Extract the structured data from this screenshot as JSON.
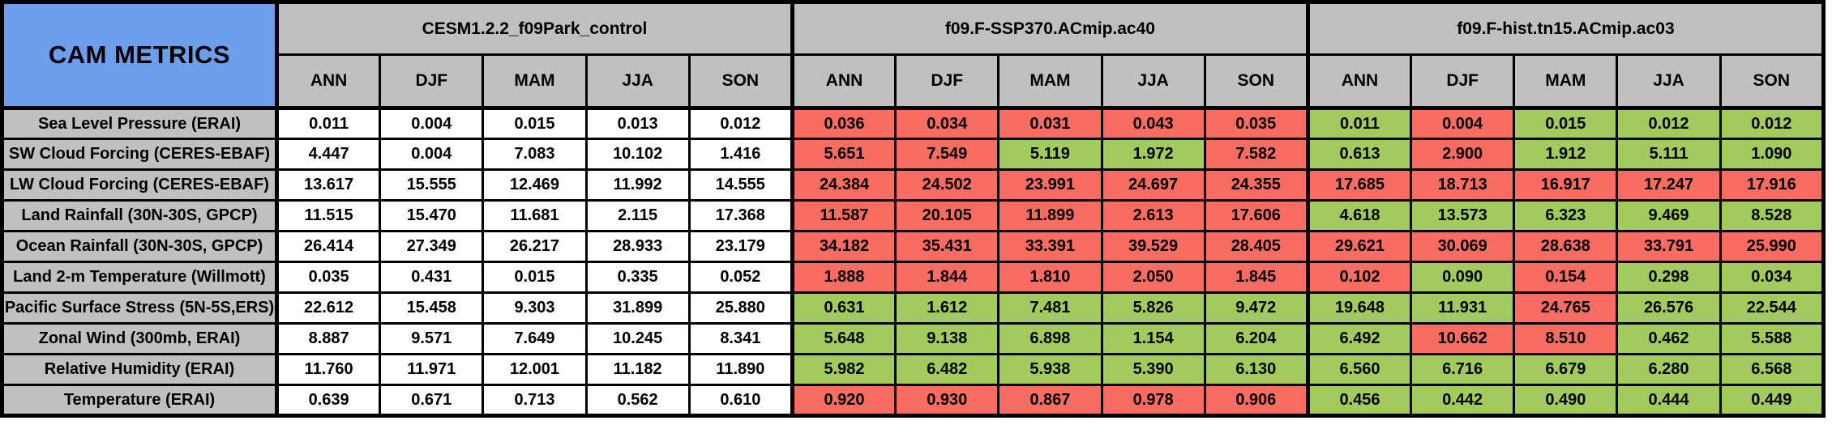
{
  "title": "CAM METRICS",
  "colors": {
    "header_blue": "#6D9EEB",
    "header_gray": "#C0C0C0",
    "cell_white": "#FFFFFF",
    "cell_red": "#F96C62",
    "cell_green": "#A2CA5C",
    "border_black": "#000000"
  },
  "chart_data": {
    "type": "table",
    "title": "CAM METRICS",
    "column_groups": [
      "CESM1.2.2_f09Park_control",
      "f09.F-SSP370.ACmip.ac40",
      "f09.F-hist.tn15.ACmip.ac03"
    ],
    "sub_columns": [
      "ANN",
      "DJF",
      "MAM",
      "JJA",
      "SON"
    ],
    "rows": [
      {
        "label": "Sea Level Pressure (ERAI)",
        "values": [
          [
            "0.011",
            "0.004",
            "0.015",
            "0.013",
            "0.012"
          ],
          [
            "0.036",
            "0.034",
            "0.031",
            "0.043",
            "0.035"
          ],
          [
            "0.011",
            "0.004",
            "0.015",
            "0.012",
            "0.012"
          ]
        ],
        "colors": [
          [
            "w",
            "w",
            "w",
            "w",
            "w"
          ],
          [
            "r",
            "r",
            "r",
            "r",
            "r"
          ],
          [
            "g",
            "r",
            "g",
            "g",
            "g"
          ]
        ]
      },
      {
        "label": "SW Cloud Forcing (CERES-EBAF)",
        "values": [
          [
            "4.447",
            "0.004",
            "7.083",
            "10.102",
            "1.416"
          ],
          [
            "5.651",
            "7.549",
            "5.119",
            "1.972",
            "7.582"
          ],
          [
            "0.613",
            "2.900",
            "1.912",
            "5.111",
            "1.090"
          ]
        ],
        "colors": [
          [
            "w",
            "w",
            "w",
            "w",
            "w"
          ],
          [
            "r",
            "r",
            "g",
            "g",
            "r"
          ],
          [
            "g",
            "r",
            "g",
            "g",
            "g"
          ]
        ]
      },
      {
        "label": "LW Cloud Forcing (CERES-EBAF)",
        "values": [
          [
            "13.617",
            "15.555",
            "12.469",
            "11.992",
            "14.555"
          ],
          [
            "24.384",
            "24.502",
            "23.991",
            "24.697",
            "24.355"
          ],
          [
            "17.685",
            "18.713",
            "16.917",
            "17.247",
            "17.916"
          ]
        ],
        "colors": [
          [
            "w",
            "w",
            "w",
            "w",
            "w"
          ],
          [
            "r",
            "r",
            "r",
            "r",
            "r"
          ],
          [
            "r",
            "r",
            "r",
            "r",
            "r"
          ]
        ]
      },
      {
        "label": "Land Rainfall (30N-30S, GPCP)",
        "values": [
          [
            "11.515",
            "15.470",
            "11.681",
            "2.115",
            "17.368"
          ],
          [
            "11.587",
            "20.105",
            "11.899",
            "2.613",
            "17.606"
          ],
          [
            "4.618",
            "13.573",
            "6.323",
            "9.469",
            "8.528"
          ]
        ],
        "colors": [
          [
            "w",
            "w",
            "w",
            "w",
            "w"
          ],
          [
            "r",
            "r",
            "r",
            "r",
            "r"
          ],
          [
            "g",
            "g",
            "g",
            "g",
            "g"
          ]
        ]
      },
      {
        "label": "Ocean Rainfall (30N-30S, GPCP)",
        "values": [
          [
            "26.414",
            "27.349",
            "26.217",
            "28.933",
            "23.179"
          ],
          [
            "34.182",
            "35.431",
            "33.391",
            "39.529",
            "28.405"
          ],
          [
            "29.621",
            "30.069",
            "28.638",
            "33.791",
            "25.990"
          ]
        ],
        "colors": [
          [
            "w",
            "w",
            "w",
            "w",
            "w"
          ],
          [
            "r",
            "r",
            "r",
            "r",
            "r"
          ],
          [
            "r",
            "r",
            "r",
            "r",
            "r"
          ]
        ]
      },
      {
        "label": "Land 2-m Temperature (Willmott)",
        "values": [
          [
            "0.035",
            "0.431",
            "0.015",
            "0.335",
            "0.052"
          ],
          [
            "1.888",
            "1.844",
            "1.810",
            "2.050",
            "1.845"
          ],
          [
            "0.102",
            "0.090",
            "0.154",
            "0.298",
            "0.034"
          ]
        ],
        "colors": [
          [
            "w",
            "w",
            "w",
            "w",
            "w"
          ],
          [
            "r",
            "r",
            "r",
            "r",
            "r"
          ],
          [
            "r",
            "g",
            "r",
            "g",
            "g"
          ]
        ]
      },
      {
        "label": "Pacific Surface Stress (5N-5S,ERS)",
        "values": [
          [
            "22.612",
            "15.458",
            "9.303",
            "31.899",
            "25.880"
          ],
          [
            "0.631",
            "1.612",
            "7.481",
            "5.826",
            "9.472"
          ],
          [
            "19.648",
            "11.931",
            "24.765",
            "26.576",
            "22.544"
          ]
        ],
        "colors": [
          [
            "w",
            "w",
            "w",
            "w",
            "w"
          ],
          [
            "g",
            "g",
            "g",
            "g",
            "g"
          ],
          [
            "g",
            "g",
            "r",
            "g",
            "g"
          ]
        ]
      },
      {
        "label": "Zonal Wind (300mb, ERAI)",
        "values": [
          [
            "8.887",
            "9.571",
            "7.649",
            "10.245",
            "8.341"
          ],
          [
            "5.648",
            "9.138",
            "6.898",
            "1.154",
            "6.204"
          ],
          [
            "6.492",
            "10.662",
            "8.510",
            "0.462",
            "5.588"
          ]
        ],
        "colors": [
          [
            "w",
            "w",
            "w",
            "w",
            "w"
          ],
          [
            "g",
            "g",
            "g",
            "g",
            "g"
          ],
          [
            "g",
            "r",
            "r",
            "g",
            "g"
          ]
        ]
      },
      {
        "label": "Relative Humidity (ERAI)",
        "values": [
          [
            "11.760",
            "11.971",
            "12.001",
            "11.182",
            "11.890"
          ],
          [
            "5.982",
            "6.482",
            "5.938",
            "5.390",
            "6.130"
          ],
          [
            "6.560",
            "6.716",
            "6.679",
            "6.280",
            "6.568"
          ]
        ],
        "colors": [
          [
            "w",
            "w",
            "w",
            "w",
            "w"
          ],
          [
            "g",
            "g",
            "g",
            "g",
            "g"
          ],
          [
            "g",
            "g",
            "g",
            "g",
            "g"
          ]
        ]
      },
      {
        "label": "Temperature (ERAI)",
        "values": [
          [
            "0.639",
            "0.671",
            "0.713",
            "0.562",
            "0.610"
          ],
          [
            "0.920",
            "0.930",
            "0.867",
            "0.978",
            "0.906"
          ],
          [
            "0.456",
            "0.442",
            "0.490",
            "0.444",
            "0.449"
          ]
        ],
        "colors": [
          [
            "w",
            "w",
            "w",
            "w",
            "w"
          ],
          [
            "r",
            "r",
            "r",
            "r",
            "r"
          ],
          [
            "g",
            "g",
            "g",
            "g",
            "g"
          ]
        ]
      }
    ]
  }
}
